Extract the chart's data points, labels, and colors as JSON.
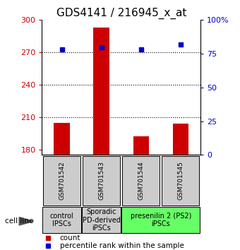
{
  "title": "GDS4141 / 216945_x_at",
  "samples": [
    "GSM701542",
    "GSM701543",
    "GSM701544",
    "GSM701545"
  ],
  "counts": [
    205,
    293,
    192,
    204
  ],
  "percentiles": [
    78,
    80,
    78,
    82
  ],
  "ylim_left": [
    175,
    300
  ],
  "ylim_right": [
    0,
    100
  ],
  "yticks_left": [
    180,
    210,
    240,
    270,
    300
  ],
  "yticks_right": [
    0,
    25,
    50,
    75,
    100
  ],
  "bar_color": "#cc0000",
  "dot_color": "#0000cc",
  "bar_width": 0.4,
  "groups": [
    {
      "label": "control\nIPSCs",
      "indices": [
        0
      ],
      "color": "#cccccc"
    },
    {
      "label": "Sporadic\nPD-derived\niPSCs",
      "indices": [
        1
      ],
      "color": "#cccccc"
    },
    {
      "label": "presenilin 2 (PS2)\niPSCs",
      "indices": [
        2,
        3
      ],
      "color": "#66ff66"
    }
  ],
  "cell_line_label": "cell line",
  "legend_count": "count",
  "legend_percentile": "percentile rank within the sample",
  "dotted_yticks": [
    210,
    240,
    270
  ],
  "title_fontsize": 11,
  "tick_fontsize": 8,
  "label_fontsize": 7,
  "sample_fontsize": 6.5
}
